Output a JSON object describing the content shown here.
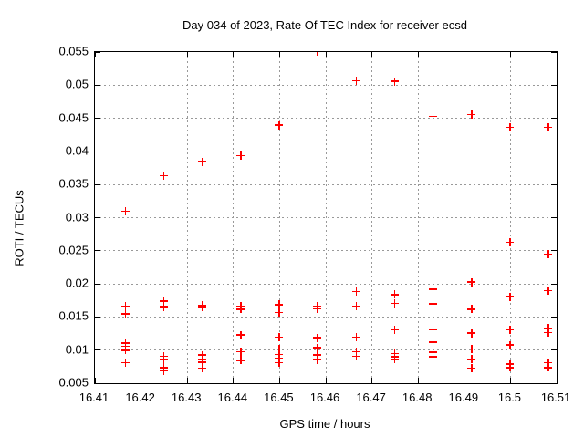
{
  "background_color": "#ffffff",
  "chart_data": {
    "type": "scatter",
    "title": "Day 034 of 2023, Rate Of TEC Index for receiver ecsd",
    "xlabel": "GPS time / hours",
    "ylabel": "ROTI / TECUs",
    "xlim": [
      16.41,
      16.51
    ],
    "ylim": [
      0.005,
      0.055
    ],
    "xticks": [
      16.41,
      16.42,
      16.43,
      16.44,
      16.45,
      16.46,
      16.47,
      16.48,
      16.49,
      16.5,
      16.51
    ],
    "xtick_labels": [
      "16.41",
      "16.42",
      "16.43",
      "16.44",
      "16.45",
      "16.46",
      "16.47",
      "16.48",
      "16.49",
      "16.5",
      "16.51"
    ],
    "yticks": [
      0.005,
      0.01,
      0.015,
      0.02,
      0.025,
      0.03,
      0.035,
      0.04,
      0.045,
      0.05,
      0.055
    ],
    "ytick_labels": [
      "0.005",
      "0.01",
      "0.015",
      "0.02",
      "0.025",
      "0.03",
      "0.035",
      "0.04",
      "0.045",
      "0.05",
      "0.055"
    ],
    "grid": true,
    "legend": "none",
    "marker": "plus",
    "marker_color": "#ff0000",
    "grid_color": "#999999",
    "border_color": "#000000",
    "series": [
      {
        "name": "ROTI",
        "points": [
          [
            16.4167,
            0.0309
          ],
          [
            16.4167,
            0.0166
          ],
          [
            16.4167,
            0.0154
          ],
          [
            16.4167,
            0.011
          ],
          [
            16.4167,
            0.0105
          ],
          [
            16.4167,
            0.0099
          ],
          [
            16.4167,
            0.008
          ],
          [
            16.425,
            0.0363
          ],
          [
            16.425,
            0.0173
          ],
          [
            16.425,
            0.0165
          ],
          [
            16.425,
            0.009
          ],
          [
            16.425,
            0.0086
          ],
          [
            16.425,
            0.0073
          ],
          [
            16.425,
            0.0068
          ],
          [
            16.4333,
            0.0384
          ],
          [
            16.4333,
            0.0167
          ],
          [
            16.4333,
            0.0165
          ],
          [
            16.4333,
            0.0092
          ],
          [
            16.4333,
            0.0086
          ],
          [
            16.4333,
            0.0081
          ],
          [
            16.4333,
            0.0072
          ],
          [
            16.4417,
            0.0393
          ],
          [
            16.4417,
            0.0166
          ],
          [
            16.4417,
            0.0161
          ],
          [
            16.4417,
            0.0122
          ],
          [
            16.4417,
            0.0097
          ],
          [
            16.4417,
            0.0084
          ],
          [
            16.45,
            0.0439
          ],
          [
            16.45,
            0.0168
          ],
          [
            16.45,
            0.0156
          ],
          [
            16.45,
            0.0119
          ],
          [
            16.45,
            0.0101
          ],
          [
            16.45,
            0.0093
          ],
          [
            16.45,
            0.0087
          ],
          [
            16.45,
            0.008
          ],
          [
            16.4583,
            0.055
          ],
          [
            16.4583,
            0.0166
          ],
          [
            16.4583,
            0.0162
          ],
          [
            16.4583,
            0.0118
          ],
          [
            16.4583,
            0.0103
          ],
          [
            16.4583,
            0.0092
          ],
          [
            16.4583,
            0.0085
          ],
          [
            16.4667,
            0.0506
          ],
          [
            16.4667,
            0.0188
          ],
          [
            16.4667,
            0.0166
          ],
          [
            16.4667,
            0.0119
          ],
          [
            16.4667,
            0.0097
          ],
          [
            16.4667,
            0.009
          ],
          [
            16.475,
            0.0505
          ],
          [
            16.475,
            0.0183
          ],
          [
            16.475,
            0.017
          ],
          [
            16.475,
            0.013
          ],
          [
            16.475,
            0.0094
          ],
          [
            16.475,
            0.0089
          ],
          [
            16.475,
            0.0086
          ],
          [
            16.4833,
            0.0452
          ],
          [
            16.4833,
            0.0191
          ],
          [
            16.4833,
            0.0169
          ],
          [
            16.4833,
            0.013
          ],
          [
            16.4833,
            0.0111
          ],
          [
            16.4833,
            0.0096
          ],
          [
            16.4833,
            0.0089
          ],
          [
            16.4917,
            0.0455
          ],
          [
            16.4917,
            0.0202
          ],
          [
            16.4917,
            0.0161
          ],
          [
            16.4917,
            0.0125
          ],
          [
            16.4917,
            0.0101
          ],
          [
            16.4917,
            0.0086
          ],
          [
            16.4917,
            0.0072
          ],
          [
            16.5,
            0.0436
          ],
          [
            16.5,
            0.0262
          ],
          [
            16.5,
            0.018
          ],
          [
            16.5,
            0.013
          ],
          [
            16.5,
            0.0107
          ],
          [
            16.5,
            0.0078
          ],
          [
            16.5,
            0.0073
          ],
          [
            16.5083,
            0.0436
          ],
          [
            16.5083,
            0.0244
          ],
          [
            16.5083,
            0.0189
          ],
          [
            16.5083,
            0.0132
          ],
          [
            16.5083,
            0.0126
          ],
          [
            16.5083,
            0.008
          ],
          [
            16.5083,
            0.0073
          ]
        ]
      }
    ]
  }
}
